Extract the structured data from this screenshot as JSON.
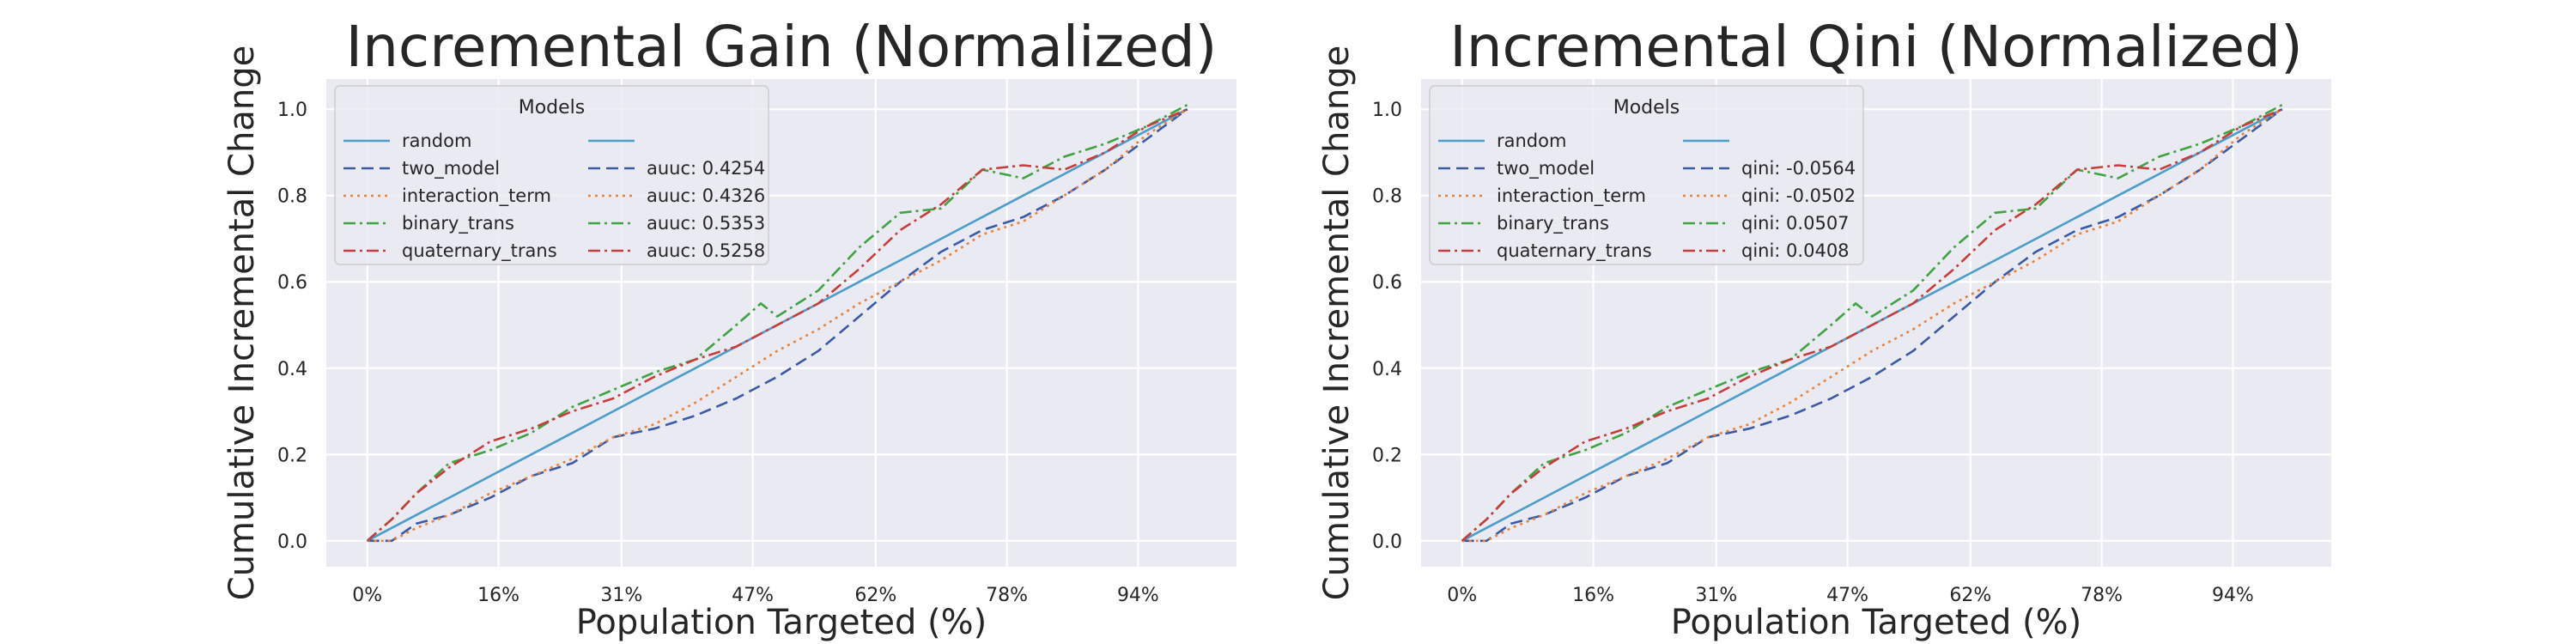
{
  "chart_data": [
    {
      "type": "line",
      "title": "Incremental Gain (Normalized)",
      "xlabel": "Population Targeted (%)",
      "ylabel": "Cumulative Incremental Change",
      "xtick_labels": [
        "0%",
        "16%",
        "31%",
        "47%",
        "62%",
        "78%",
        "94%"
      ],
      "xtick_values": [
        0,
        16,
        31,
        47,
        62,
        78,
        94
      ],
      "ytick_values": [
        0.0,
        0.2,
        0.4,
        0.6,
        0.8,
        1.0
      ],
      "xlim": [
        -5,
        106
      ],
      "ylim": [
        -0.06,
        1.07
      ],
      "grid": true,
      "legend": {
        "title": "Models",
        "placement": "upper-left",
        "col2_labels": [
          "",
          "auuc: 0.4254",
          "auuc: 0.4326",
          "auuc: 0.5353",
          "auuc: 0.5258"
        ]
      },
      "series": [
        {
          "name": "random",
          "color": "#4c9dc9",
          "style": "solid",
          "x": [
            0,
            5,
            10,
            15,
            20,
            25,
            30,
            35,
            40,
            45,
            50,
            55,
            60,
            65,
            70,
            75,
            80,
            85,
            90,
            95,
            100
          ],
          "y": [
            0.0,
            0.05,
            0.1,
            0.15,
            0.2,
            0.25,
            0.3,
            0.35,
            0.4,
            0.45,
            0.5,
            0.55,
            0.6,
            0.65,
            0.7,
            0.75,
            0.8,
            0.85,
            0.9,
            0.95,
            1.0
          ]
        },
        {
          "name": "two_model",
          "color": "#3a5aa8",
          "style": "dashed",
          "x": [
            0,
            3,
            6,
            10,
            15,
            20,
            25,
            30,
            35,
            40,
            45,
            50,
            55,
            60,
            65,
            70,
            75,
            80,
            85,
            90,
            95,
            100
          ],
          "y": [
            0.0,
            0.0,
            0.04,
            0.06,
            0.1,
            0.15,
            0.18,
            0.24,
            0.26,
            0.29,
            0.33,
            0.38,
            0.44,
            0.52,
            0.6,
            0.67,
            0.72,
            0.75,
            0.8,
            0.86,
            0.93,
            1.0
          ]
        },
        {
          "name": "interaction_term",
          "color": "#e8823a",
          "style": "dotted",
          "x": [
            0,
            3,
            6,
            10,
            15,
            20,
            25,
            30,
            35,
            40,
            45,
            50,
            55,
            60,
            65,
            70,
            75,
            80,
            85,
            90,
            95,
            100
          ],
          "y": [
            0.0,
            0.0,
            0.03,
            0.06,
            0.11,
            0.15,
            0.19,
            0.24,
            0.27,
            0.32,
            0.38,
            0.44,
            0.49,
            0.55,
            0.6,
            0.65,
            0.71,
            0.74,
            0.8,
            0.86,
            0.94,
            1.0
          ]
        },
        {
          "name": "binary_trans",
          "color": "#3ea340",
          "style": "dashdot",
          "x": [
            0,
            3,
            6,
            10,
            15,
            20,
            25,
            30,
            35,
            40,
            45,
            48,
            50,
            55,
            60,
            65,
            70,
            75,
            80,
            85,
            90,
            95,
            100
          ],
          "y": [
            0.0,
            0.05,
            0.11,
            0.18,
            0.21,
            0.25,
            0.31,
            0.35,
            0.39,
            0.42,
            0.5,
            0.55,
            0.52,
            0.58,
            0.68,
            0.76,
            0.77,
            0.86,
            0.84,
            0.89,
            0.92,
            0.96,
            1.01
          ]
        },
        {
          "name": "quaternary_trans",
          "color": "#c63d3b",
          "style": "dashdot",
          "x": [
            0,
            3,
            6,
            10,
            15,
            20,
            25,
            30,
            35,
            40,
            45,
            50,
            55,
            60,
            65,
            70,
            75,
            80,
            85,
            90,
            95,
            100
          ],
          "y": [
            0.0,
            0.05,
            0.11,
            0.17,
            0.23,
            0.26,
            0.3,
            0.33,
            0.38,
            0.42,
            0.45,
            0.5,
            0.55,
            0.63,
            0.72,
            0.78,
            0.86,
            0.87,
            0.86,
            0.9,
            0.96,
            1.0
          ]
        }
      ]
    },
    {
      "type": "line",
      "title": "Incremental Qini (Normalized)",
      "xlabel": "Population Targeted (%)",
      "ylabel": "Cumulative Incremental Change",
      "xtick_labels": [
        "0%",
        "16%",
        "31%",
        "47%",
        "62%",
        "78%",
        "94%"
      ],
      "xtick_values": [
        0,
        16,
        31,
        47,
        62,
        78,
        94
      ],
      "ytick_values": [
        0.0,
        0.2,
        0.4,
        0.6,
        0.8,
        1.0
      ],
      "xlim": [
        -5,
        106
      ],
      "ylim": [
        -0.06,
        1.07
      ],
      "grid": true,
      "legend": {
        "title": "Models",
        "placement": "upper-left",
        "col2_labels": [
          "",
          "qini: -0.0564",
          "qini: -0.0502",
          "qini: 0.0507",
          "qini: 0.0408"
        ]
      },
      "series": [
        {
          "name": "random",
          "color": "#4c9dc9",
          "style": "solid",
          "x": [
            0,
            5,
            10,
            15,
            20,
            25,
            30,
            35,
            40,
            45,
            50,
            55,
            60,
            65,
            70,
            75,
            80,
            85,
            90,
            95,
            100
          ],
          "y": [
            0.0,
            0.05,
            0.1,
            0.15,
            0.2,
            0.25,
            0.3,
            0.35,
            0.4,
            0.45,
            0.5,
            0.55,
            0.6,
            0.65,
            0.7,
            0.75,
            0.8,
            0.85,
            0.9,
            0.95,
            1.0
          ]
        },
        {
          "name": "two_model",
          "color": "#3a5aa8",
          "style": "dashed",
          "x": [
            0,
            3,
            6,
            10,
            15,
            20,
            25,
            30,
            35,
            40,
            45,
            50,
            55,
            60,
            65,
            70,
            75,
            80,
            85,
            90,
            95,
            100
          ],
          "y": [
            0.0,
            0.0,
            0.04,
            0.06,
            0.1,
            0.15,
            0.18,
            0.24,
            0.26,
            0.29,
            0.33,
            0.38,
            0.44,
            0.52,
            0.6,
            0.67,
            0.72,
            0.75,
            0.8,
            0.86,
            0.93,
            1.0
          ]
        },
        {
          "name": "interaction_term",
          "color": "#e8823a",
          "style": "dotted",
          "x": [
            0,
            3,
            6,
            10,
            15,
            20,
            25,
            30,
            35,
            40,
            45,
            50,
            55,
            60,
            65,
            70,
            75,
            80,
            85,
            90,
            95,
            100
          ],
          "y": [
            0.0,
            0.0,
            0.03,
            0.06,
            0.11,
            0.15,
            0.19,
            0.24,
            0.27,
            0.32,
            0.38,
            0.44,
            0.49,
            0.55,
            0.6,
            0.65,
            0.71,
            0.74,
            0.8,
            0.86,
            0.94,
            1.0
          ]
        },
        {
          "name": "binary_trans",
          "color": "#3ea340",
          "style": "dashdot",
          "x": [
            0,
            3,
            6,
            10,
            15,
            20,
            25,
            30,
            35,
            40,
            45,
            48,
            50,
            55,
            60,
            65,
            70,
            75,
            80,
            85,
            90,
            95,
            100
          ],
          "y": [
            0.0,
            0.05,
            0.11,
            0.18,
            0.21,
            0.25,
            0.31,
            0.35,
            0.39,
            0.42,
            0.5,
            0.55,
            0.52,
            0.58,
            0.68,
            0.76,
            0.77,
            0.86,
            0.84,
            0.89,
            0.92,
            0.96,
            1.01
          ]
        },
        {
          "name": "quaternary_trans",
          "color": "#c63d3b",
          "style": "dashdot",
          "x": [
            0,
            3,
            6,
            10,
            15,
            20,
            25,
            30,
            35,
            40,
            45,
            50,
            55,
            60,
            65,
            70,
            75,
            80,
            85,
            90,
            95,
            100
          ],
          "y": [
            0.0,
            0.05,
            0.11,
            0.17,
            0.23,
            0.26,
            0.3,
            0.33,
            0.38,
            0.42,
            0.45,
            0.5,
            0.55,
            0.63,
            0.72,
            0.78,
            0.86,
            0.87,
            0.86,
            0.9,
            0.96,
            1.0
          ]
        }
      ]
    }
  ]
}
